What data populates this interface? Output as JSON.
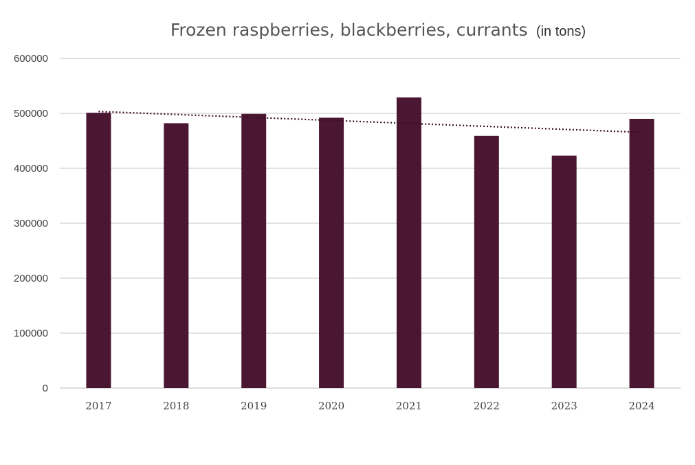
{
  "chart_data": {
    "type": "bar",
    "title": "Frozen raspberries, blackberries, currants",
    "subtitle": "(in tons)",
    "categories": [
      "2017",
      "2018",
      "2019",
      "2020",
      "2021",
      "2022",
      "2023",
      "2024"
    ],
    "values": [
      501000,
      482000,
      499000,
      492000,
      529000,
      459000,
      423000,
      490000
    ],
    "ylim": [
      0,
      600000
    ],
    "yticks": [
      "0",
      "100000",
      "200000",
      "300000",
      "400000",
      "500000",
      "600000"
    ],
    "trendline": {
      "type": "linear",
      "style": "dotted",
      "color": "#3a0f1f"
    },
    "bar_color": "#4a1632",
    "grid": true,
    "legend": "none",
    "xlabel": "",
    "ylabel": ""
  }
}
